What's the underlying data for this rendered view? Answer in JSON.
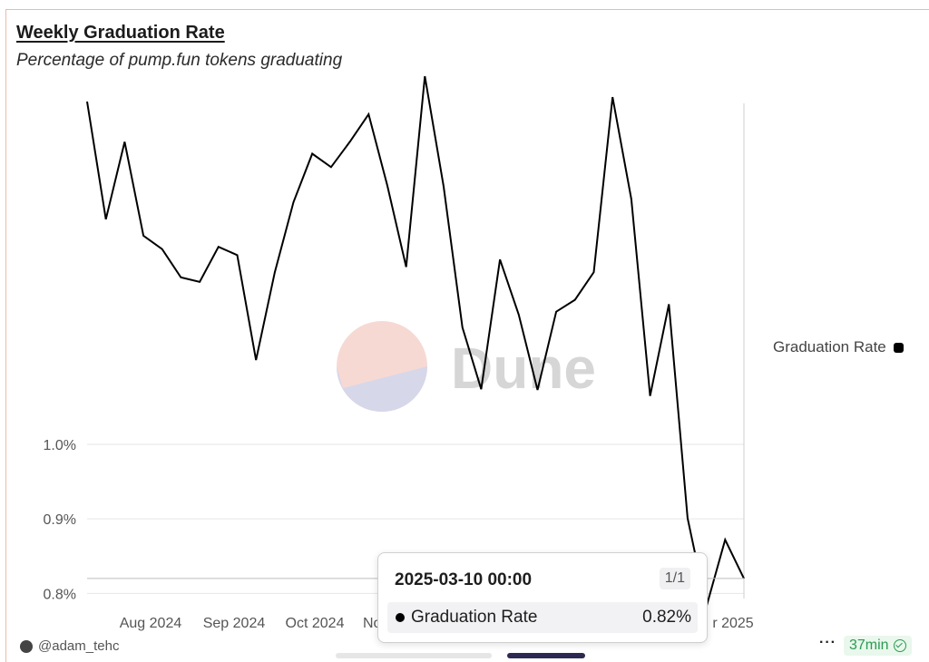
{
  "header": {
    "title": "Weekly Graduation Rate",
    "subtitle": "Percentage of pump.fun tokens graduating"
  },
  "watermark": "Dune",
  "legend": {
    "label": "Graduation Rate",
    "color": "#000000"
  },
  "tooltip": {
    "date": "2025-03-10 00:00",
    "page": "1/1",
    "series": "Graduation Rate",
    "value": "0.82%"
  },
  "footer": {
    "user": "@adam_tehc",
    "more": "···",
    "time": "37min"
  },
  "chart_data": {
    "type": "line",
    "x_tick_labels": [
      "Aug 2024",
      "Sep 2024",
      "Oct 2024",
      "No",
      "r 2025"
    ],
    "y_tick_labels": [
      "0.8%",
      "0.9%",
      "1.0%"
    ],
    "y_ticks": [
      0.8,
      0.9,
      1.0
    ],
    "series": [
      {
        "name": "Graduation Rate",
        "color": "#000000",
        "values": [
          1.46,
          1.302,
          1.406,
          1.28,
          1.262,
          1.224,
          1.218,
          1.265,
          1.254,
          1.113,
          1.231,
          1.325,
          1.39,
          1.372,
          1.406,
          1.443,
          1.347,
          1.238,
          1.494,
          1.346,
          1.157,
          1.074,
          1.248,
          1.174,
          1.073,
          1.178,
          1.194,
          1.231,
          1.466,
          1.329,
          1.065,
          1.188,
          0.901,
          0.782,
          0.872,
          0.82
        ]
      }
    ]
  }
}
